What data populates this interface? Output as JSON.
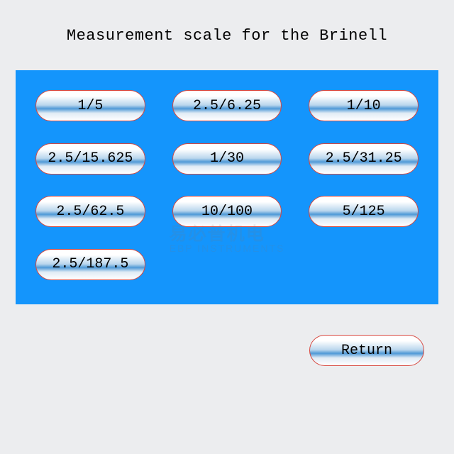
{
  "header": {
    "title": "Measurement scale for the Brinell"
  },
  "panel": {
    "background_color": "#1495fc",
    "buttons": [
      {
        "label": "1/5"
      },
      {
        "label": "2.5/6.25"
      },
      {
        "label": "1/10"
      },
      {
        "label": "2.5/15.625"
      },
      {
        "label": "1/30"
      },
      {
        "label": "2.5/31.25"
      },
      {
        "label": "2.5/62.5"
      },
      {
        "label": "10/100"
      },
      {
        "label": "5/125"
      },
      {
        "label": "2.5/187.5"
      }
    ],
    "button_style": {
      "border_color": "#d64840",
      "border_radius": 24,
      "gradient_stops": [
        "#ffffff",
        "#bad6ed",
        "#4f99d7",
        "#e0ebf5",
        "#ffffff"
      ],
      "font_family": "Courier New",
      "font_size": 20,
      "text_color": "#000000"
    }
  },
  "return_button": {
    "label": "Return"
  },
  "page_background": "#ecedef",
  "watermark": {
    "line1": "易必普机电",
    "line2": "EBP INSTRUMENTS"
  }
}
